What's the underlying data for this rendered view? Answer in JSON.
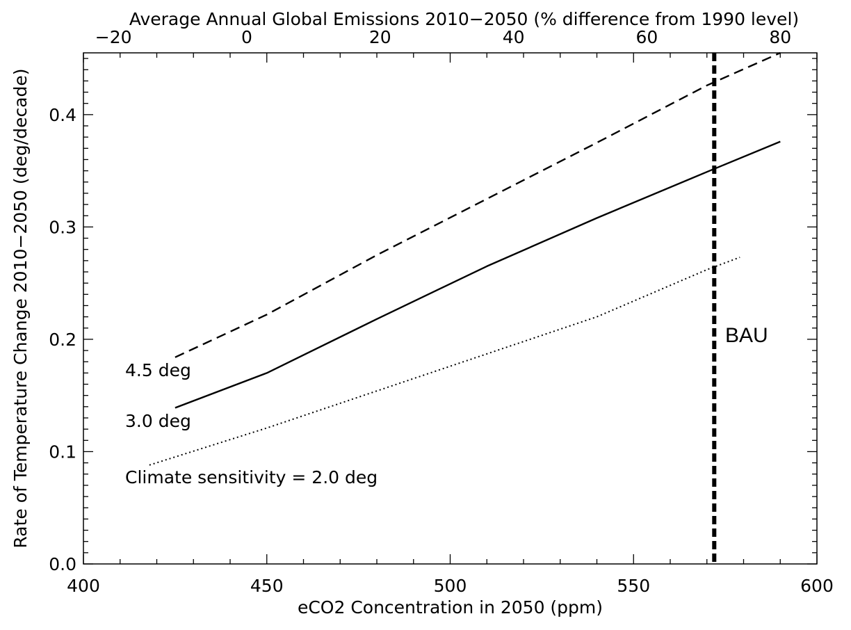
{
  "chart_data": {
    "type": "line",
    "title": "",
    "xlabel": "eCO2 Concentration in 2050 (ppm)",
    "ylabel": "Rate of Temperature Change 2010−2050 (deg/decade)",
    "x2label": "Average Annual Global Emissions 2010−2050 (% difference from 1990 level)",
    "xlim": [
      400,
      600
    ],
    "ylim": [
      0.0,
      0.455
    ],
    "x2lim": [
      -24.5,
      85.5
    ],
    "x_ticks": [
      400,
      450,
      500,
      550,
      600
    ],
    "x_tick_labels": [
      "400",
      "450",
      "500",
      "550",
      "600"
    ],
    "y_ticks": [
      0.0,
      0.1,
      0.2,
      0.3,
      0.4
    ],
    "y_tick_labels": [
      "0.0",
      "0.1",
      "0.2",
      "0.3",
      "0.4"
    ],
    "x2_ticks": [
      -20,
      0,
      20,
      40,
      60,
      80
    ],
    "x2_tick_labels": [
      "−20",
      "0",
      "20",
      "40",
      "60",
      "80"
    ],
    "grid": false,
    "legend": "none",
    "series": [
      {
        "name": "4.5 deg",
        "style": "dashed",
        "x": [
          425,
          450,
          480,
          510,
          540,
          570,
          590
        ],
        "y": [
          0.184,
          0.222,
          0.275,
          0.325,
          0.375,
          0.426,
          0.455
        ]
      },
      {
        "name": "3.0 deg",
        "style": "solid",
        "x": [
          425,
          450,
          480,
          510,
          540,
          570,
          590
        ],
        "y": [
          0.139,
          0.17,
          0.218,
          0.265,
          0.308,
          0.349,
          0.376
        ]
      },
      {
        "name": "Climate sensitivity = 2.0 deg",
        "style": "dotted",
        "x": [
          418,
          450,
          480,
          510,
          540,
          570,
          579
        ],
        "y": [
          0.088,
          0.121,
          0.154,
          0.187,
          0.22,
          0.262,
          0.273
        ]
      }
    ],
    "vline": {
      "x": 572,
      "label": "BAU",
      "style": "thick-dashed"
    }
  }
}
